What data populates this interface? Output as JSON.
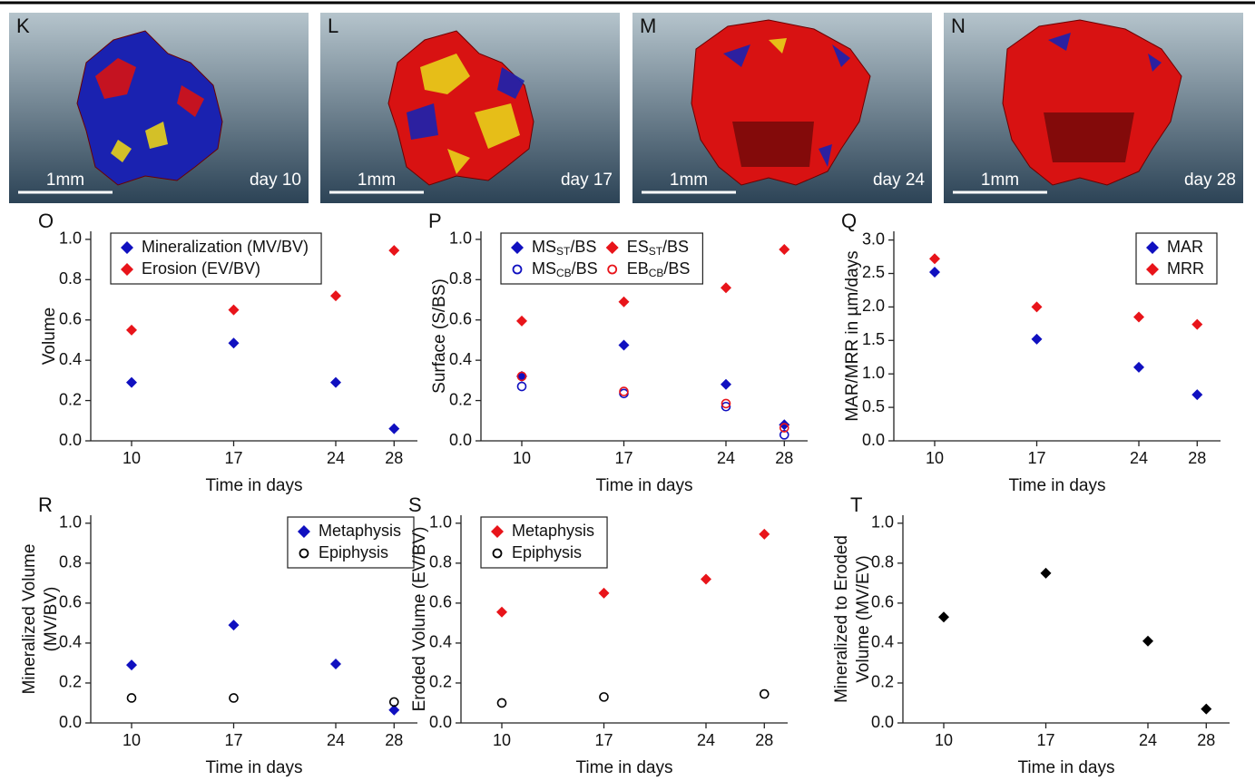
{
  "panels": [
    {
      "letter": "K",
      "scale": "1mm",
      "day": "day 10"
    },
    {
      "letter": "L",
      "scale": "1mm",
      "day": "day 17"
    },
    {
      "letter": "M",
      "scale": "1mm",
      "day": "day 24"
    },
    {
      "letter": "N",
      "scale": "1mm",
      "day": "day 28"
    }
  ],
  "chart_data": [
    {
      "type": "scatter",
      "panel_label": "O",
      "xlabel": "Time in days",
      "ylabel": [
        "Volume"
      ],
      "x": [
        10,
        17,
        24,
        28
      ],
      "xlim": [
        7.2,
        29.6
      ],
      "xticks": [
        10,
        17,
        24,
        28
      ],
      "ylim": [
        0,
        1.04
      ],
      "yticks": [
        {
          "value": 0,
          "label": "0.0"
        },
        0.2,
        0.4,
        0.6,
        0.8,
        {
          "value": 1,
          "label": "1.0"
        }
      ],
      "legend": "upper left",
      "legend_columns": 1,
      "series": [
        {
          "name": [
            "Mineralization (MV/BV)"
          ],
          "color": "#1010c0",
          "marker": "diamond",
          "values": [
            0.29,
            0.485,
            0.29,
            0.06
          ]
        },
        {
          "name": [
            "Erosion (EV/BV)"
          ],
          "color": "#e8141a",
          "marker": "diamond",
          "values": [
            0.55,
            0.65,
            0.72,
            0.945
          ]
        }
      ]
    },
    {
      "type": "scatter",
      "panel_label": "P",
      "xlabel": "Time in days",
      "ylabel": [
        "Surface (S/BS)"
      ],
      "x": [
        10,
        17,
        24,
        28
      ],
      "xlim": [
        7.2,
        29.6
      ],
      "xticks": [
        10,
        17,
        24,
        28
      ],
      "ylim": [
        0,
        1.04
      ],
      "yticks": [
        {
          "value": 0,
          "label": "0.0"
        },
        0.2,
        0.4,
        0.6,
        0.8,
        {
          "value": 1,
          "label": "1.0"
        }
      ],
      "legend": "upper left",
      "legend_columns": 2,
      "series": [
        {
          "name": [
            "MS",
            "ST",
            "/BS"
          ],
          "color": "#1010c0",
          "marker": "diamond",
          "values": [
            0.32,
            0.475,
            0.28,
            0.08
          ]
        },
        {
          "name": [
            "ES",
            "ST",
            "/BS"
          ],
          "color": "#e8141a",
          "marker": "diamond",
          "values": [
            0.595,
            0.69,
            0.76,
            0.95
          ]
        },
        {
          "name": [
            "MS",
            "CB",
            "/BS"
          ],
          "color": "#1010c0",
          "marker": "circle",
          "values": [
            0.27,
            0.235,
            0.17,
            0.03
          ]
        },
        {
          "name": [
            "EB",
            "CB",
            "/BS"
          ],
          "color": "#e8141a",
          "marker": "circle",
          "values": [
            0.32,
            0.245,
            0.185,
            0.065
          ]
        }
      ]
    },
    {
      "type": "scatter",
      "panel_label": "Q",
      "xlabel": "Time in days",
      "ylabel": [
        "MAR/MRR in µm/days"
      ],
      "x": [
        10,
        17,
        24,
        28
      ],
      "xlim": [
        7.2,
        29.6
      ],
      "xticks": [
        10,
        17,
        24,
        28
      ],
      "ylim": [
        0,
        3.13
      ],
      "yticks": [
        {
          "value": 0,
          "label": "0.0"
        },
        0.5,
        {
          "value": 1,
          "label": "1.0"
        },
        1.5,
        {
          "value": 2,
          "label": "2.0"
        },
        2.5,
        {
          "value": 3,
          "label": "3.0"
        }
      ],
      "legend": "upper right",
      "legend_columns": 1,
      "series": [
        {
          "name": [
            "MAR"
          ],
          "color": "#1010c0",
          "marker": "diamond",
          "values": [
            2.52,
            1.52,
            1.1,
            0.69
          ]
        },
        {
          "name": [
            "MRR"
          ],
          "color": "#e8141a",
          "marker": "diamond",
          "values": [
            2.72,
            2.0,
            1.85,
            1.74
          ]
        }
      ]
    },
    {
      "type": "scatter",
      "panel_label": "R",
      "xlabel": "Time in days",
      "ylabel": [
        "Mineralized Volume",
        "(MV/BV)"
      ],
      "x": [
        10,
        17,
        24,
        28
      ],
      "xlim": [
        7.2,
        29.6
      ],
      "xticks": [
        10,
        17,
        24,
        28
      ],
      "ylim": [
        0,
        1.04
      ],
      "yticks": [
        {
          "value": 0,
          "label": "0.0"
        },
        0.2,
        0.4,
        0.6,
        0.8,
        {
          "value": 1,
          "label": "1.0"
        }
      ],
      "legend": "upper right",
      "legend_columns": 1,
      "series": [
        {
          "name": [
            "Metaphysis"
          ],
          "color": "#1010c0",
          "marker": "diamond",
          "values": [
            0.29,
            0.49,
            0.295,
            0.065
          ]
        },
        {
          "name": [
            "Epiphysis"
          ],
          "color": "#000000",
          "marker": "circle",
          "values": [
            0.125,
            0.125,
            null,
            0.105
          ]
        }
      ]
    },
    {
      "type": "scatter",
      "panel_label": "S",
      "xlabel": "Time in days",
      "ylabel": [
        "Eroded Volume (EV/BV)"
      ],
      "x": [
        10,
        17,
        24,
        28
      ],
      "xlim": [
        7.2,
        29.6
      ],
      "xticks": [
        10,
        17,
        24,
        28
      ],
      "ylim": [
        0,
        1.04
      ],
      "yticks": [
        {
          "value": 0,
          "label": "0.0"
        },
        0.2,
        0.4,
        0.6,
        0.8,
        {
          "value": 1,
          "label": "1.0"
        }
      ],
      "legend": "upper left",
      "legend_columns": 1,
      "series": [
        {
          "name": [
            "Metaphysis"
          ],
          "color": "#e8141a",
          "marker": "diamond",
          "values": [
            0.555,
            0.65,
            0.72,
            0.945
          ]
        },
        {
          "name": [
            "Epiphysis"
          ],
          "color": "#000000",
          "marker": "circle",
          "values": [
            0.1,
            0.13,
            null,
            0.145
          ]
        }
      ]
    },
    {
      "type": "scatter",
      "panel_label": "T",
      "xlabel": "Time in days",
      "ylabel": [
        "Mineralized to Eroded",
        "Volume (MV/EV)"
      ],
      "x": [
        10,
        17,
        24,
        28
      ],
      "xlim": [
        7.2,
        29.6
      ],
      "xticks": [
        10,
        17,
        24,
        28
      ],
      "ylim": [
        0,
        1.04
      ],
      "yticks": [
        {
          "value": 0,
          "label": "0.0"
        },
        0.2,
        0.4,
        0.6,
        0.8,
        {
          "value": 1,
          "label": "1.0"
        }
      ],
      "series": [
        {
          "color": "#000000",
          "marker": "diamond",
          "values": [
            0.53,
            0.75,
            0.41,
            0.07
          ]
        }
      ]
    }
  ]
}
